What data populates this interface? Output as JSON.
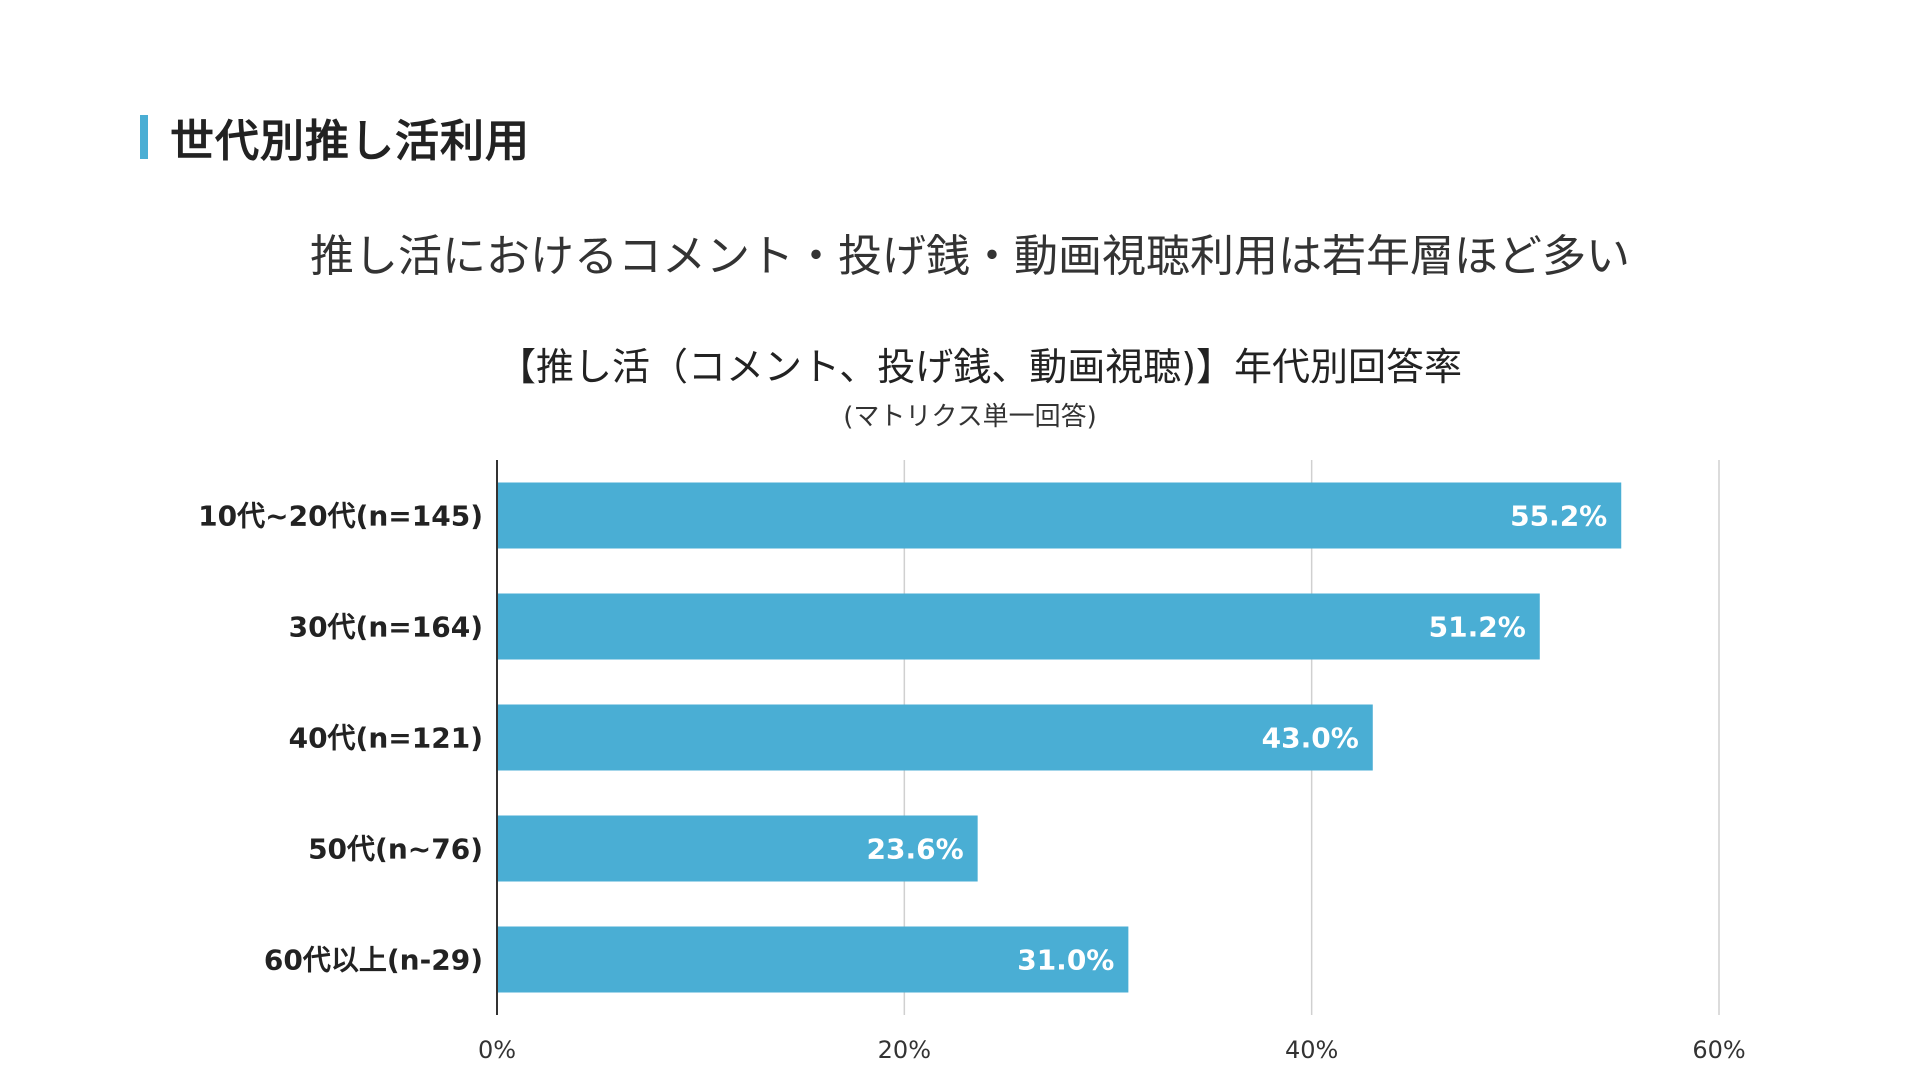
{
  "slide": {
    "heading": "世代別推し活利用",
    "subtitle": "推し活におけるコメント・投げ銭・動画視聴利用は若年層ほど多い",
    "accent_color": "#4aaed4"
  },
  "chart_data": {
    "type": "bar",
    "orientation": "horizontal",
    "title": "【推し活（コメント、投げ銭、動画視聴)】年代別回答率",
    "subtitle": "(マトリクス単一回答)",
    "categories": [
      "10代~20代(n=145)",
      "30代(n=164)",
      "40代(n=121)",
      "50代(n~76)",
      "60代以上(n-29)"
    ],
    "values": [
      55.2,
      51.2,
      43.0,
      23.6,
      31.0
    ],
    "value_labels": [
      "55.2%",
      "51.2%",
      "43.0%",
      "23.6%",
      "31.0%"
    ],
    "xlim": [
      0,
      60
    ],
    "xticks": [
      0,
      20,
      40,
      60
    ],
    "xtick_labels": [
      "0%",
      "20%",
      "40%",
      "60%"
    ],
    "grid": true,
    "bar_color": "#4aaed4"
  }
}
